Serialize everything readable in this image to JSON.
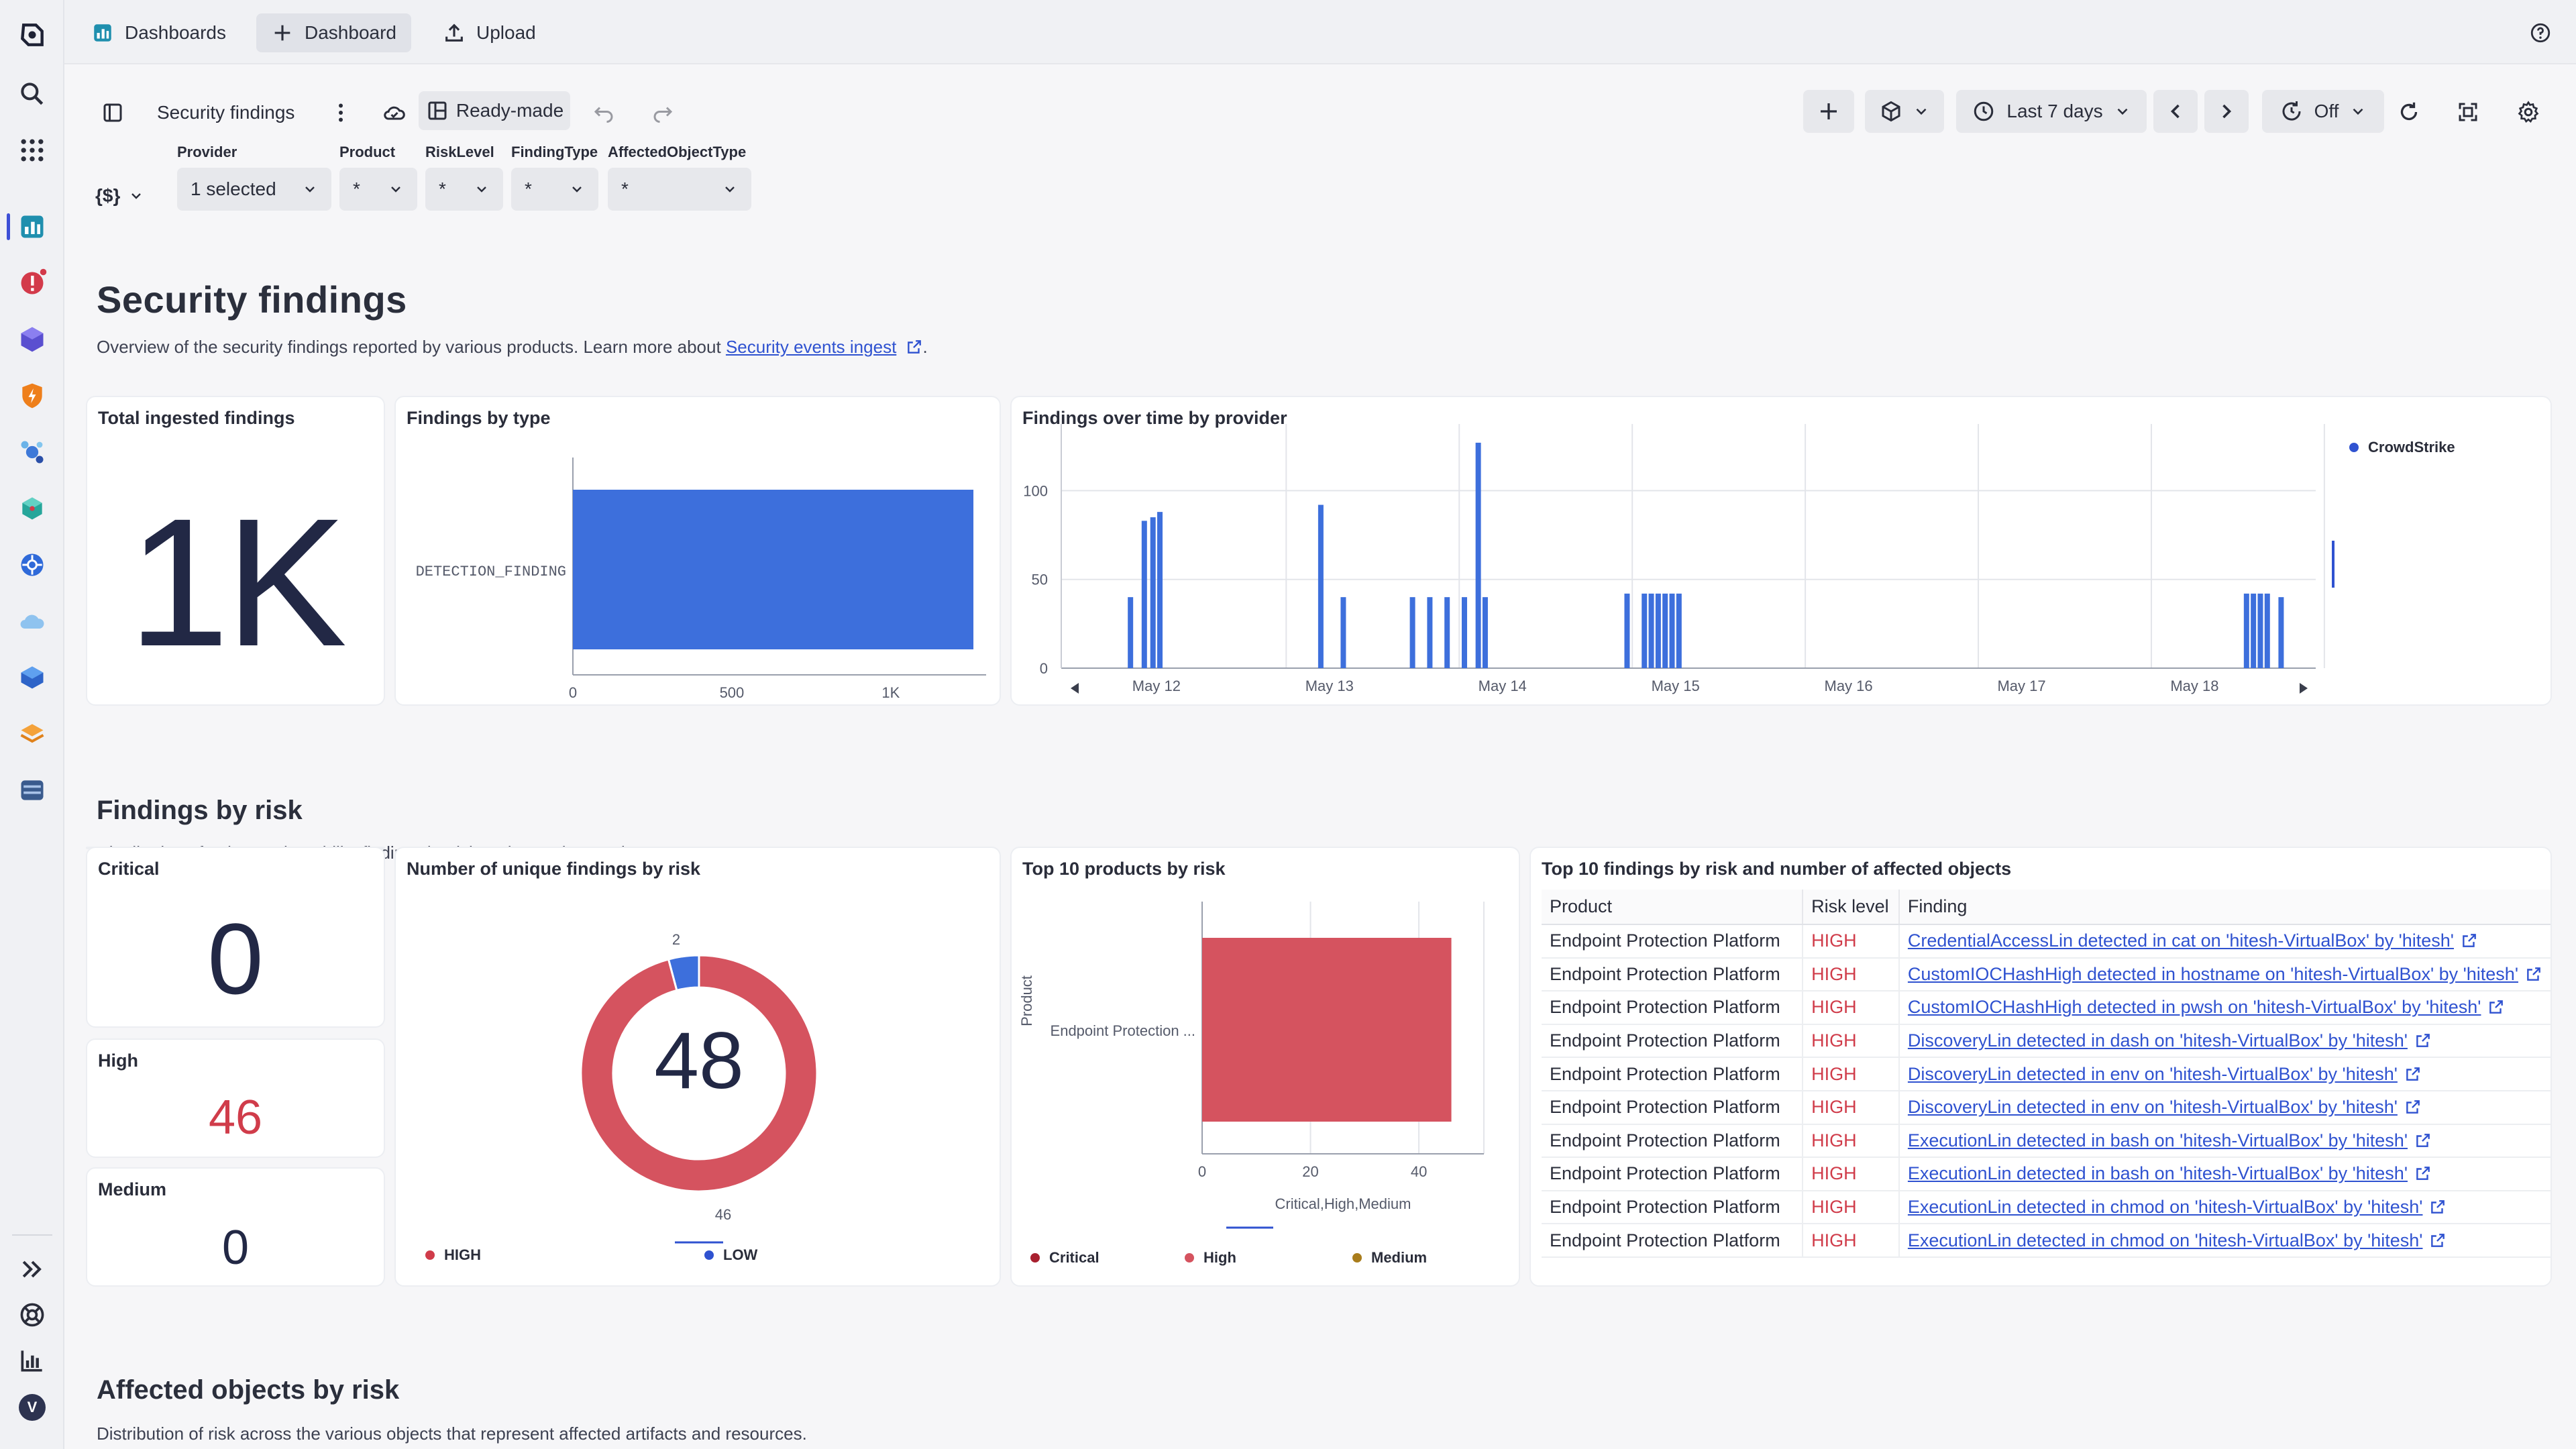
{
  "topnav": {
    "items": [
      {
        "label": "Dashboards",
        "icon": "dashboards-icon"
      },
      {
        "label": "Dashboard",
        "icon": "plus-icon"
      },
      {
        "label": "Upload",
        "icon": "upload-icon"
      }
    ]
  },
  "toolbar": {
    "title": "Security findings",
    "mode": "Ready-made",
    "timeframe": "Last 7 days",
    "refresh": "Off",
    "var_button": "{$}"
  },
  "variables": [
    {
      "label": "Provider",
      "value": "1 selected"
    },
    {
      "label": "Product",
      "value": "*"
    },
    {
      "label": "RiskLevel",
      "value": "*"
    },
    {
      "label": "FindingType",
      "value": "*"
    },
    {
      "label": "AffectedObjectType",
      "value": "*"
    }
  ],
  "header": {
    "title": "Security findings",
    "desc_prefix": "Overview of the security findings reported by various products. Learn more about",
    "desc_link": "Security events ingest",
    "desc_suffix": "."
  },
  "tiles": {
    "total": {
      "title": "Total ingested findings",
      "value": "1K"
    },
    "by_type": {
      "title": "Findings by type"
    },
    "over_time": {
      "title": "Findings over time by provider"
    },
    "risk_section": {
      "title": "Findings by risk",
      "desc": "Distribution of unique vulnerability findings by risk and reporting products."
    },
    "critical": {
      "title": "Critical",
      "value": "0"
    },
    "high": {
      "title": "High",
      "value": "46"
    },
    "medium": {
      "title": "Medium",
      "value": "0"
    },
    "unique_by_risk": {
      "title": "Number of unique findings by risk",
      "center": "48"
    },
    "top_products": {
      "title": "Top 10 products by risk"
    },
    "top_findings": {
      "title": "Top 10 findings by risk and number of affected objects"
    },
    "affected_section": {
      "title": "Affected objects by risk",
      "desc": "Distribution of risk across the various objects that represent affected artifacts and resources."
    }
  },
  "chart_data": [
    {
      "type": "bar",
      "title": "Findings by type",
      "orientation": "horizontal",
      "categories": [
        "DETECTION_FINDING"
      ],
      "values": [
        1260
      ],
      "xticks": [
        "0",
        "500",
        "1K"
      ],
      "xlim": [
        0,
        1300
      ],
      "color": "#3d6fdc"
    },
    {
      "type": "bar",
      "title": "Findings over time by provider",
      "series": [
        {
          "name": "CrowdStrike",
          "color": "#3d6fdc"
        }
      ],
      "xticks": [
        "May 12",
        "May 13",
        "May 14",
        "May 15",
        "May 16",
        "May 17",
        "May 18"
      ],
      "yticks": [
        "0",
        "50",
        "100"
      ],
      "ylim": [
        0,
        130
      ],
      "x_range": [
        11.45,
        18.7
      ],
      "points": [
        {
          "x": 11.85,
          "y": 40
        },
        {
          "x": 11.93,
          "y": 83
        },
        {
          "x": 11.98,
          "y": 85
        },
        {
          "x": 12.02,
          "y": 88
        },
        {
          "x": 12.95,
          "y": 92
        },
        {
          "x": 13.08,
          "y": 40
        },
        {
          "x": 13.48,
          "y": 40
        },
        {
          "x": 13.58,
          "y": 40
        },
        {
          "x": 13.68,
          "y": 40
        },
        {
          "x": 13.78,
          "y": 40
        },
        {
          "x": 13.86,
          "y": 127
        },
        {
          "x": 13.9,
          "y": 40
        },
        {
          "x": 14.72,
          "y": 42
        },
        {
          "x": 14.82,
          "y": 42
        },
        {
          "x": 14.86,
          "y": 42
        },
        {
          "x": 14.9,
          "y": 42
        },
        {
          "x": 14.94,
          "y": 42
        },
        {
          "x": 14.98,
          "y": 42
        },
        {
          "x": 15.02,
          "y": 42
        },
        {
          "x": 18.3,
          "y": 42
        },
        {
          "x": 18.34,
          "y": 42
        },
        {
          "x": 18.38,
          "y": 42
        },
        {
          "x": 18.42,
          "y": 42
        },
        {
          "x": 18.5,
          "y": 40
        }
      ]
    },
    {
      "type": "pie",
      "title": "Number of unique findings by risk",
      "donut": true,
      "slices": [
        {
          "label": "HIGH",
          "value": 46,
          "color": "#d5535f"
        },
        {
          "label": "LOW",
          "value": 2,
          "color": "#3d6fdc"
        }
      ]
    },
    {
      "type": "bar",
      "title": "Top 10 products by risk",
      "orientation": "horizontal",
      "ylabel": "Product",
      "xlabel": "Critical,High,Medium",
      "categories": [
        "Endpoint Protection ..."
      ],
      "series": [
        {
          "name": "Critical",
          "values": [
            0
          ],
          "color": "#a8202f"
        },
        {
          "name": "High",
          "values": [
            46
          ],
          "color": "#d5535f"
        },
        {
          "name": "Medium",
          "values": [
            0
          ],
          "color": "#a97d1c"
        }
      ],
      "xticks": [
        "0",
        "20",
        "40"
      ],
      "xlim": [
        0,
        52
      ]
    }
  ],
  "findings_table": {
    "columns": [
      "Product",
      "Risk level",
      "Finding"
    ],
    "rows": [
      [
        "Endpoint Protection Platform",
        "HIGH",
        "CredentialAccessLin detected in cat on 'hitesh-VirtualBox' by 'hitesh'"
      ],
      [
        "Endpoint Protection Platform",
        "HIGH",
        "CustomIOCHashHigh detected in hostname on 'hitesh-VirtualBox' by 'hitesh'"
      ],
      [
        "Endpoint Protection Platform",
        "HIGH",
        "CustomIOCHashHigh detected in pwsh on 'hitesh-VirtualBox' by 'hitesh'"
      ],
      [
        "Endpoint Protection Platform",
        "HIGH",
        "DiscoveryLin detected in dash on 'hitesh-VirtualBox' by 'hitesh'"
      ],
      [
        "Endpoint Protection Platform",
        "HIGH",
        "DiscoveryLin detected in env on 'hitesh-VirtualBox' by 'hitesh'"
      ],
      [
        "Endpoint Protection Platform",
        "HIGH",
        "DiscoveryLin detected in env on 'hitesh-VirtualBox' by 'hitesh'"
      ],
      [
        "Endpoint Protection Platform",
        "HIGH",
        "ExecutionLin detected in bash on 'hitesh-VirtualBox' by 'hitesh'"
      ],
      [
        "Endpoint Protection Platform",
        "HIGH",
        "ExecutionLin detected in bash on 'hitesh-VirtualBox' by 'hitesh'"
      ],
      [
        "Endpoint Protection Platform",
        "HIGH",
        "ExecutionLin detected in chmod on 'hitesh-VirtualBox' by 'hitesh'"
      ],
      [
        "Endpoint Protection Platform",
        "HIGH",
        "ExecutionLin detected in chmod on 'hitesh-VirtualBox' by 'hitesh'"
      ]
    ]
  },
  "rail": {
    "user_initial": "V",
    "icons": [
      "logo-icon",
      "search-icon",
      "apps-grid-icon",
      "dashboards-app-icon",
      "alert-app-icon",
      "cube-app-icon",
      "shield-app-icon",
      "cluster-app-icon",
      "stack-app-icon",
      "kubernetes-app-icon",
      "cloud-app-icon",
      "box-app-icon",
      "layers-app-icon",
      "database-app-icon",
      "expand-icon",
      "support-icon",
      "chart-icon"
    ]
  }
}
